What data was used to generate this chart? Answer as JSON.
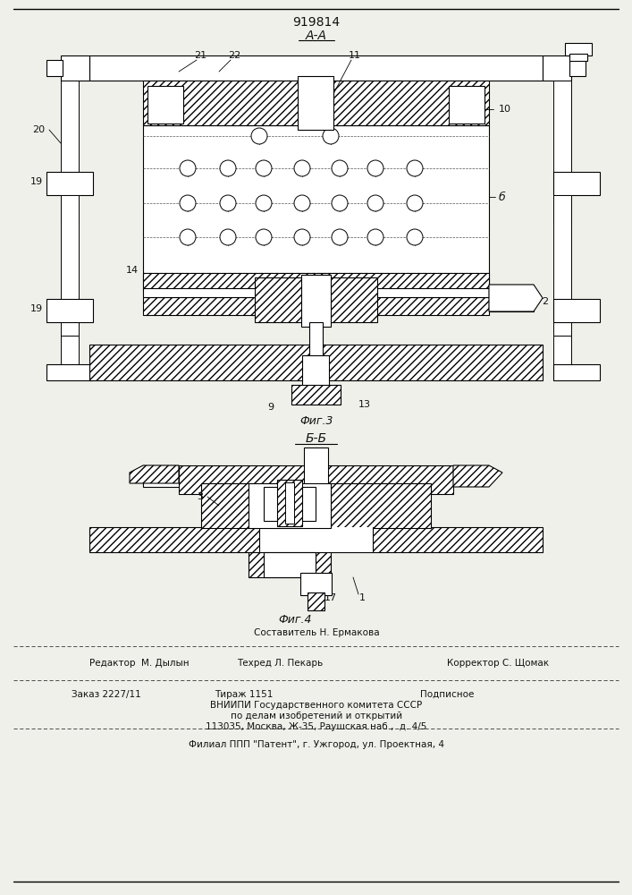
{
  "patent_number": "919814",
  "fig3_label": "А-А",
  "fig3_caption": "Фиг.3",
  "fig4_section": "Б-Б",
  "fig4_caption": "Фиг.4",
  "footer_comp": "Составитель Н. Ермакова",
  "footer_editor": "Редактор  М. Дылын",
  "footer_tech": "Техред Л. Пекарь",
  "footer_corr": "Корректор С. Щомак",
  "footer_order": "Заказ 2227/11",
  "footer_tirazh": "Тираж 1151",
  "footer_podp": "Подписное",
  "footer_vniip": "ВНИИПИ Государственного комитета СССР",
  "footer_delo": "по делам изобретений и открытий",
  "footer_addr": "113035, Москва, Ж-35, Раушская наб.,  д. 4/5",
  "footer_filial": "Филиал ППП \"Патент\", г. Ужгород, ул. Проектная, 4",
  "bg_color": "#f0f0eb",
  "line_color": "#111111"
}
